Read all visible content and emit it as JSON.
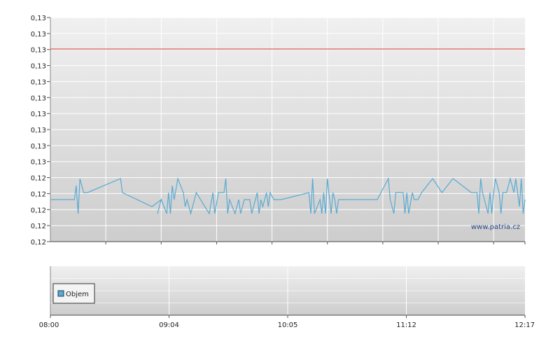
{
  "chart_data": [
    {
      "type": "line",
      "title": "",
      "xlabel": "",
      "ylabel": "",
      "yticks": [
        "0,12",
        "0,12",
        "0,12",
        "0,12",
        "0,12",
        "0,13",
        "0,13",
        "0,13",
        "0,13",
        "0,13",
        "0,13",
        "0,13",
        "0,13",
        "0,13",
        "0,13"
      ],
      "ylim": [
        0.1186,
        0.1314
      ],
      "xlim": [
        "08:00",
        "12:17"
      ],
      "grid": true,
      "watermark": "www.patria.cz",
      "reference_line": {
        "value": 0.1296,
        "color": "#e05a50"
      },
      "series": [
        {
          "color": "#5aaad2",
          "points": [
            [
              "08:00",
              0.121
            ],
            [
              "08:13",
              0.121
            ],
            [
              "08:14",
              0.1218
            ],
            [
              "08:15",
              0.1202
            ],
            [
              "08:16",
              0.1222
            ],
            [
              "08:18",
              0.1214
            ],
            [
              "08:20",
              0.1214
            ],
            [
              "08:38",
              0.1222
            ],
            [
              "08:39",
              0.1214
            ],
            [
              "08:55",
              0.1206
            ],
            [
              "09:00",
              0.121
            ],
            [
              "08:58",
              0.1202
            ],
            [
              "09:00",
              0.121
            ],
            [
              "09:03",
              0.1202
            ],
            [
              "09:04",
              0.1214
            ],
            [
              "09:05",
              0.1202
            ],
            [
              "09:06",
              0.1218
            ],
            [
              "09:07",
              0.121
            ],
            [
              "09:09",
              0.1222
            ],
            [
              "09:12",
              0.1214
            ],
            [
              "09:13",
              0.1206
            ],
            [
              "09:14",
              0.121
            ],
            [
              "09:16",
              0.1202
            ],
            [
              "09:19",
              0.1214
            ],
            [
              "09:26",
              0.1202
            ],
            [
              "09:28",
              0.1214
            ],
            [
              "09:29",
              0.1202
            ],
            [
              "09:31",
              0.1214
            ],
            [
              "09:34",
              0.1214
            ],
            [
              "09:35",
              0.1222
            ],
            [
              "09:36",
              0.1202
            ],
            [
              "09:37",
              0.121
            ],
            [
              "09:40",
              0.1202
            ],
            [
              "09:42",
              0.121
            ],
            [
              "09:43",
              0.1202
            ],
            [
              "09:45",
              0.121
            ],
            [
              "09:48",
              0.121
            ],
            [
              "09:49",
              0.1202
            ],
            [
              "09:52",
              0.1214
            ],
            [
              "09:53",
              0.1202
            ],
            [
              "09:54",
              0.121
            ],
            [
              "09:55",
              0.1206
            ],
            [
              "09:57",
              0.1214
            ],
            [
              "09:58",
              0.1206
            ],
            [
              "09:59",
              0.1214
            ],
            [
              "10:01",
              0.121
            ],
            [
              "10:05",
              0.121
            ],
            [
              "10:20",
              0.1214
            ],
            [
              "10:21",
              0.1202
            ],
            [
              "10:22",
              0.1222
            ],
            [
              "10:23",
              0.1202
            ],
            [
              "10:26",
              0.121
            ],
            [
              "10:27",
              0.1202
            ],
            [
              "10:28",
              0.1214
            ],
            [
              "10:29",
              0.1202
            ],
            [
              "10:30",
              0.1222
            ],
            [
              "10:32",
              0.1202
            ],
            [
              "10:33",
              0.1214
            ],
            [
              "10:34",
              0.121
            ],
            [
              "10:35",
              0.1202
            ],
            [
              "10:36",
              0.121
            ],
            [
              "10:42",
              0.121
            ],
            [
              "10:57",
              0.121
            ],
            [
              "11:03",
              0.1222
            ],
            [
              "11:04",
              0.121
            ],
            [
              "11:06",
              0.1202
            ],
            [
              "11:07",
              0.1214
            ],
            [
              "11:11",
              0.1214
            ],
            [
              "11:12",
              0.1202
            ],
            [
              "11:13",
              0.1214
            ],
            [
              "11:14",
              0.1202
            ],
            [
              "11:16",
              0.1214
            ],
            [
              "11:17",
              0.121
            ],
            [
              "11:19",
              0.121
            ],
            [
              "11:21",
              0.1214
            ],
            [
              "11:27",
              0.1222
            ],
            [
              "11:32",
              0.1214
            ],
            [
              "11:38",
              0.1222
            ],
            [
              "11:48",
              0.1214
            ],
            [
              "11:51",
              0.1214
            ],
            [
              "11:52",
              0.1202
            ],
            [
              "11:53",
              0.1222
            ],
            [
              "11:54",
              0.1214
            ],
            [
              "11:55",
              0.121
            ],
            [
              "11:57",
              0.1202
            ],
            [
              "11:58",
              0.1214
            ],
            [
              "11:59",
              0.1202
            ],
            [
              "12:00",
              0.1214
            ],
            [
              "12:01",
              0.1222
            ],
            [
              "12:03",
              0.1214
            ],
            [
              "12:04",
              0.1202
            ],
            [
              "12:05",
              0.1214
            ],
            [
              "12:07",
              0.1214
            ],
            [
              "12:09",
              0.1222
            ],
            [
              "12:11",
              0.1214
            ],
            [
              "12:12",
              0.1222
            ],
            [
              "12:14",
              0.1206
            ],
            [
              "12:15",
              0.1222
            ],
            [
              "12:16",
              0.1202
            ],
            [
              "12:17",
              0.121
            ]
          ]
        }
      ]
    },
    {
      "type": "bar",
      "title": "",
      "legend": {
        "label": "Objem",
        "placement": "top-left",
        "color": "#5aaad2"
      },
      "xticks": [
        "08:00",
        "09:04",
        "10:05",
        "11:12",
        "12:17"
      ],
      "grid": true
    }
  ]
}
